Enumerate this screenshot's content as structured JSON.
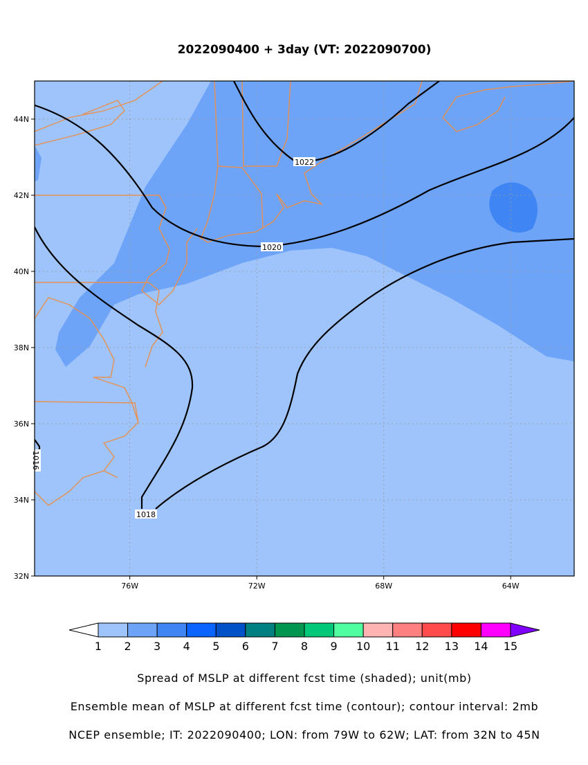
{
  "header": {
    "title": "2022090400 + 3day (VT: 2022090700)"
  },
  "map": {
    "lon_range": [
      -79,
      -62
    ],
    "lat_range": [
      32,
      45
    ],
    "lon_ticks": [
      {
        "value": -76,
        "label": "76W"
      },
      {
        "value": -72,
        "label": "72W"
      },
      {
        "value": -68,
        "label": "68W"
      },
      {
        "value": -64,
        "label": "64W"
      }
    ],
    "lat_ticks": [
      {
        "value": 44,
        "label": "44N"
      },
      {
        "value": 42,
        "label": "42N"
      },
      {
        "value": 40,
        "label": "40N"
      },
      {
        "value": 38,
        "label": "38N"
      },
      {
        "value": 36,
        "label": "36N"
      },
      {
        "value": 34,
        "label": "34N"
      },
      {
        "value": 32,
        "label": "32N"
      }
    ],
    "grid": true,
    "contours": [
      {
        "value": 1022
      },
      {
        "value": 1020
      },
      {
        "value": 1018
      },
      {
        "value": 1016
      }
    ]
  },
  "colorbar": {
    "levels": [
      1,
      2,
      3,
      4,
      5,
      6,
      7,
      8,
      9,
      10,
      11,
      12,
      13,
      14,
      15
    ],
    "colors": [
      "#9ec4fb",
      "#6ea4f8",
      "#3f86f4",
      "#0a64ff",
      "#0050c8",
      "#008080",
      "#009650",
      "#00c878",
      "#50ffa0",
      "#ffb4b4",
      "#ff8080",
      "#ff4b4b",
      "#ff0000",
      "#ff00ff"
    ],
    "under_color": "#ffffff",
    "over_color": "#8000ff"
  },
  "captions": [
    "Spread of MSLP at different fcst time (shaded); unit(mb)",
    "Ensemble mean of MSLP at different fcst time (contour); contour interval: 2mb",
    "NCEP ensemble; IT: 2022090400; LON: from 79W to 62W; LAT: from 32N to 45N"
  ]
}
